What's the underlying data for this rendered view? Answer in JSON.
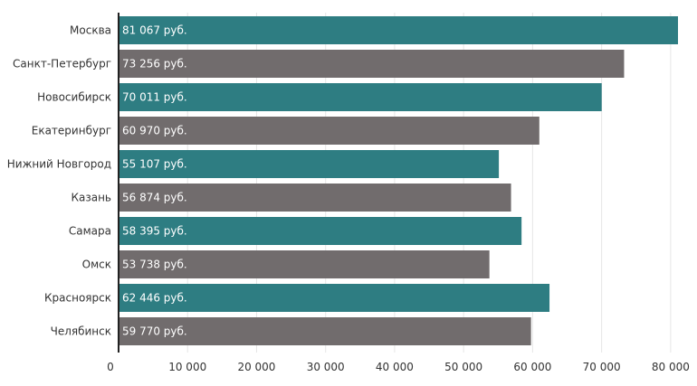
{
  "chart_data": {
    "type": "bar",
    "orientation": "horizontal",
    "categories": [
      "Москва",
      "Санкт-Петербург",
      "Новосибирск",
      "Екатеринбург",
      "Нижний Новгород",
      "Казань",
      "Самара",
      "Омск",
      "Красноярск",
      "Челябинск"
    ],
    "values": [
      81067,
      73256,
      70011,
      60970,
      55107,
      56874,
      58395,
      53738,
      62446,
      59770
    ],
    "value_labels": [
      "81 067 руб.",
      "73 256 руб.",
      "70 011 руб.",
      "60 970 руб.",
      "55 107 руб.",
      "56 874 руб.",
      "58 395 руб.",
      "53 738 руб.",
      "62 446 руб.",
      "59 770 руб."
    ],
    "bar_colors": [
      "#2e7d82",
      "#716c6d"
    ],
    "xlim": [
      0,
      81067
    ],
    "xticks": [
      0,
      10000,
      20000,
      30000,
      40000,
      50000,
      60000,
      70000,
      80000
    ],
    "xtick_labels": [
      "0",
      "10 000",
      "20 000",
      "30 000",
      "40 000",
      "50 000",
      "60 000",
      "70 000",
      "80 000"
    ],
    "grid": "vertical"
  }
}
